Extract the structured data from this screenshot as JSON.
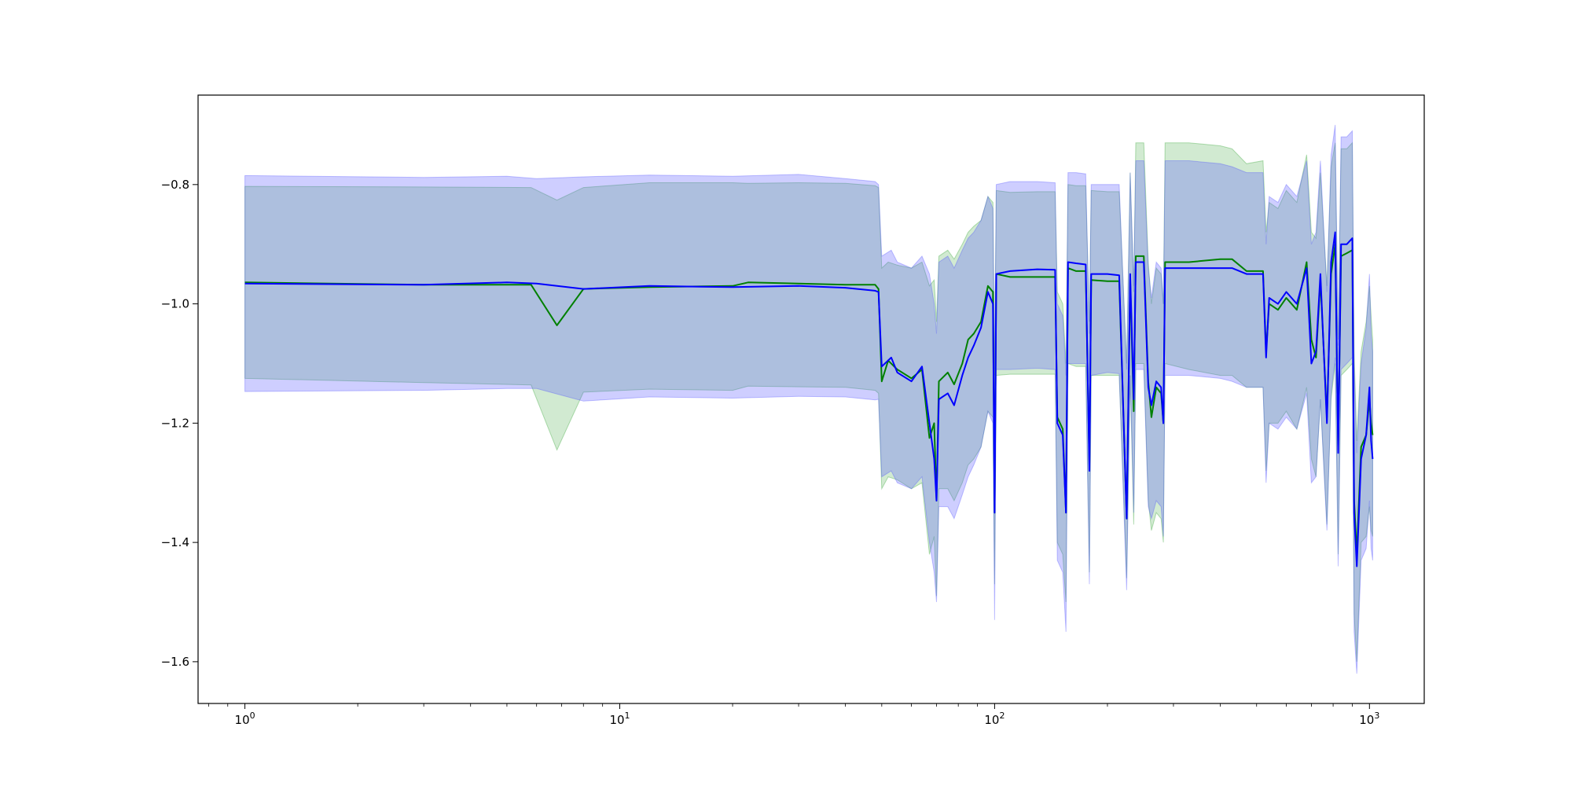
{
  "chart_data": {
    "type": "line",
    "title": "",
    "xlabel": "",
    "ylabel": "",
    "xscale": "log",
    "xlim": [
      0.75,
      1400
    ],
    "ylim": [
      -1.67,
      -0.65
    ],
    "grid": false,
    "legend": "none",
    "x_ticks": [
      {
        "value": 1,
        "base": "10",
        "exp": "0"
      },
      {
        "value": 10,
        "base": "10",
        "exp": "1"
      },
      {
        "value": 100,
        "base": "10",
        "exp": "2"
      },
      {
        "value": 1000,
        "base": "10",
        "exp": "3"
      }
    ],
    "y_ticks": [
      {
        "value": -0.8,
        "label": "−0.8"
      },
      {
        "value": -1.0,
        "label": "−1.0"
      },
      {
        "value": -1.2,
        "label": "−1.2"
      },
      {
        "value": -1.4,
        "label": "−1.4"
      },
      {
        "value": -1.6,
        "label": "−1.6"
      }
    ],
    "series": [
      {
        "color": "#008000",
        "band_color": "#2ca02c",
        "band_opacity": 0.22,
        "points": [
          [
            1,
            -0.964,
            -0.803,
            -1.125
          ],
          [
            3,
            -0.968,
            -0.804,
            -1.132
          ],
          [
            5.8,
            -0.968,
            -0.805,
            -1.136
          ],
          [
            6.8,
            -1.036,
            -0.826,
            -1.245
          ],
          [
            8,
            -0.975,
            -0.805,
            -1.148
          ],
          [
            12,
            -0.972,
            -0.797,
            -1.143
          ],
          [
            20,
            -0.97,
            -0.797,
            -1.145
          ],
          [
            22,
            -0.964,
            -0.798,
            -1.138
          ],
          [
            30,
            -0.966,
            -0.797,
            -1.139
          ],
          [
            40,
            -0.968,
            -0.798,
            -1.14
          ],
          [
            48,
            -0.968,
            -0.802,
            -1.145
          ],
          [
            49,
            -0.975,
            -0.805,
            -1.15
          ],
          [
            50,
            -1.13,
            -0.94,
            -1.31
          ],
          [
            52,
            -1.095,
            -0.93,
            -1.29
          ],
          [
            55,
            -1.11,
            -0.935,
            -1.295
          ],
          [
            60,
            -1.125,
            -0.94,
            -1.31
          ],
          [
            64,
            -1.11,
            -0.93,
            -1.3
          ],
          [
            67,
            -1.225,
            -0.97,
            -1.42
          ],
          [
            69,
            -1.2,
            -0.96,
            -1.39
          ],
          [
            70,
            -1.33,
            -1.03,
            -1.49
          ],
          [
            71,
            -1.13,
            -0.92,
            -1.31
          ],
          [
            75,
            -1.115,
            -0.91,
            -1.31
          ],
          [
            78,
            -1.135,
            -0.925,
            -1.33
          ],
          [
            82,
            -1.1,
            -0.9,
            -1.3
          ],
          [
            85,
            -1.06,
            -0.88,
            -1.27
          ],
          [
            88,
            -1.05,
            -0.87,
            -1.26
          ],
          [
            92,
            -1.03,
            -0.86,
            -1.24
          ],
          [
            96,
            -0.97,
            -0.82,
            -1.18
          ],
          [
            99,
            -0.98,
            -0.83,
            -1.19
          ],
          [
            100,
            -1.35,
            -1.12,
            -1.47
          ],
          [
            101,
            -0.95,
            -0.81,
            -1.12
          ],
          [
            110,
            -0.955,
            -0.813,
            -1.118
          ],
          [
            130,
            -0.955,
            -0.812,
            -1.118
          ],
          [
            145,
            -0.955,
            -0.812,
            -1.118
          ],
          [
            147,
            -1.19,
            -0.98,
            -1.4
          ],
          [
            152,
            -1.21,
            -1.0,
            -1.42
          ],
          [
            155,
            -1.35,
            -1.1,
            -1.5
          ],
          [
            157,
            -0.94,
            -0.8,
            -1.1
          ],
          [
            165,
            -0.945,
            -0.802,
            -1.105
          ],
          [
            175,
            -0.945,
            -0.802,
            -1.105
          ],
          [
            179,
            -1.27,
            -1.03,
            -1.45
          ],
          [
            181,
            -0.96,
            -0.81,
            -1.12
          ],
          [
            200,
            -0.962,
            -0.812,
            -1.12
          ],
          [
            215,
            -0.962,
            -0.812,
            -1.12
          ],
          [
            225,
            -1.36,
            -1.1,
            -1.46
          ],
          [
            230,
            -0.96,
            -0.78,
            -1.12
          ],
          [
            235,
            -1.18,
            -0.98,
            -1.37
          ],
          [
            238,
            -0.92,
            -0.73,
            -1.1
          ],
          [
            250,
            -0.92,
            -0.73,
            -1.1
          ],
          [
            257,
            -1.13,
            -0.93,
            -1.33
          ],
          [
            262,
            -1.19,
            -1.0,
            -1.38
          ],
          [
            270,
            -1.14,
            -0.94,
            -1.35
          ],
          [
            278,
            -1.15,
            -0.95,
            -1.36
          ],
          [
            282,
            -1.2,
            -1.0,
            -1.4
          ],
          [
            285,
            -0.93,
            -0.73,
            -1.1
          ],
          [
            330,
            -0.93,
            -0.73,
            -1.11
          ],
          [
            400,
            -0.925,
            -0.735,
            -1.12
          ],
          [
            430,
            -0.925,
            -0.74,
            -1.12
          ],
          [
            470,
            -0.945,
            -0.765,
            -1.14
          ],
          [
            520,
            -0.945,
            -0.76,
            -1.14
          ],
          [
            530,
            -1.08,
            -0.88,
            -1.28
          ],
          [
            540,
            -1.0,
            -0.83,
            -1.2
          ],
          [
            570,
            -1.01,
            -0.84,
            -1.2
          ],
          [
            600,
            -0.99,
            -0.81,
            -1.18
          ],
          [
            640,
            -1.01,
            -0.83,
            -1.21
          ],
          [
            680,
            -0.93,
            -0.75,
            -1.14
          ],
          [
            700,
            -1.06,
            -0.88,
            -1.26
          ],
          [
            720,
            -1.09,
            -0.89,
            -1.29
          ],
          [
            740,
            -0.96,
            -0.78,
            -1.16
          ],
          [
            770,
            -1.19,
            -0.97,
            -1.37
          ],
          [
            790,
            -0.95,
            -0.77,
            -1.16
          ],
          [
            810,
            -0.9,
            -0.73,
            -1.1
          ],
          [
            825,
            -1.24,
            -1.06,
            -1.42
          ],
          [
            840,
            -0.92,
            -0.74,
            -1.12
          ],
          [
            870,
            -0.915,
            -0.74,
            -1.11
          ],
          [
            900,
            -0.91,
            -0.73,
            -1.1
          ],
          [
            910,
            -1.33,
            -1.08,
            -1.52
          ],
          [
            925,
            -1.42,
            -1.23,
            -1.6
          ],
          [
            950,
            -1.24,
            -1.08,
            -1.4
          ],
          [
            980,
            -1.22,
            -1.03,
            -1.39
          ],
          [
            1000,
            -1.16,
            -0.97,
            -1.34
          ],
          [
            1010,
            -1.2,
            -1.02,
            -1.38
          ],
          [
            1020,
            -1.22,
            -1.06,
            -1.39
          ]
        ]
      },
      {
        "color": "#0000ff",
        "band_color": "#5050ff",
        "band_opacity": 0.28,
        "points": [
          [
            1,
            -0.966,
            -0.785,
            -1.147
          ],
          [
            3,
            -0.968,
            -0.788,
            -1.145
          ],
          [
            5,
            -0.964,
            -0.786,
            -1.142
          ],
          [
            6,
            -0.966,
            -0.79,
            -1.142
          ],
          [
            8,
            -0.975,
            -0.787,
            -1.163
          ],
          [
            12,
            -0.97,
            -0.784,
            -1.156
          ],
          [
            20,
            -0.972,
            -0.786,
            -1.158
          ],
          [
            30,
            -0.97,
            -0.783,
            -1.155
          ],
          [
            40,
            -0.973,
            -0.79,
            -1.156
          ],
          [
            48,
            -0.978,
            -0.795,
            -1.161
          ],
          [
            49,
            -0.98,
            -0.8,
            -1.16
          ],
          [
            50,
            -1.105,
            -0.92,
            -1.29
          ],
          [
            53,
            -1.09,
            -0.91,
            -1.28
          ],
          [
            55,
            -1.115,
            -0.93,
            -1.3
          ],
          [
            60,
            -1.13,
            -0.94,
            -1.31
          ],
          [
            64,
            -1.105,
            -0.92,
            -1.29
          ],
          [
            67,
            -1.2,
            -0.95,
            -1.4
          ],
          [
            69,
            -1.26,
            -1.0,
            -1.45
          ],
          [
            70,
            -1.33,
            -1.05,
            -1.5
          ],
          [
            71,
            -1.16,
            -0.93,
            -1.34
          ],
          [
            75,
            -1.15,
            -0.92,
            -1.34
          ],
          [
            78,
            -1.17,
            -0.94,
            -1.36
          ],
          [
            82,
            -1.12,
            -0.91,
            -1.32
          ],
          [
            85,
            -1.09,
            -0.89,
            -1.29
          ],
          [
            88,
            -1.07,
            -0.88,
            -1.27
          ],
          [
            92,
            -1.04,
            -0.86,
            -1.24
          ],
          [
            96,
            -0.98,
            -0.82,
            -1.18
          ],
          [
            99,
            -1.0,
            -0.84,
            -1.2
          ],
          [
            100,
            -1.35,
            -1.11,
            -1.53
          ],
          [
            101,
            -0.95,
            -0.8,
            -1.11
          ],
          [
            110,
            -0.945,
            -0.795,
            -1.11
          ],
          [
            130,
            -0.942,
            -0.795,
            -1.108
          ],
          [
            145,
            -0.943,
            -0.797,
            -1.11
          ],
          [
            147,
            -1.2,
            -1.0,
            -1.43
          ],
          [
            152,
            -1.22,
            -1.02,
            -1.45
          ],
          [
            155,
            -1.35,
            -1.12,
            -1.55
          ],
          [
            157,
            -0.93,
            -0.78,
            -1.1
          ],
          [
            165,
            -0.932,
            -0.78,
            -1.1
          ],
          [
            175,
            -0.934,
            -0.782,
            -1.1
          ],
          [
            179,
            -1.28,
            -1.05,
            -1.47
          ],
          [
            181,
            -0.95,
            -0.8,
            -1.12
          ],
          [
            200,
            -0.95,
            -0.8,
            -1.115
          ],
          [
            215,
            -0.952,
            -0.8,
            -1.117
          ],
          [
            225,
            -1.36,
            -1.11,
            -1.48
          ],
          [
            230,
            -0.95,
            -0.78,
            -1.12
          ],
          [
            235,
            -1.16,
            -0.97,
            -1.35
          ],
          [
            238,
            -0.93,
            -0.76,
            -1.11
          ],
          [
            250,
            -0.93,
            -0.76,
            -1.11
          ],
          [
            257,
            -1.14,
            -0.94,
            -1.34
          ],
          [
            262,
            -1.17,
            -0.99,
            -1.36
          ],
          [
            270,
            -1.13,
            -0.93,
            -1.33
          ],
          [
            278,
            -1.14,
            -0.94,
            -1.34
          ],
          [
            282,
            -1.2,
            -1.0,
            -1.39
          ],
          [
            285,
            -0.94,
            -0.76,
            -1.12
          ],
          [
            330,
            -0.94,
            -0.76,
            -1.12
          ],
          [
            400,
            -0.94,
            -0.765,
            -1.125
          ],
          [
            430,
            -0.94,
            -0.77,
            -1.13
          ],
          [
            470,
            -0.95,
            -0.78,
            -1.14
          ],
          [
            520,
            -0.95,
            -0.78,
            -1.14
          ],
          [
            530,
            -1.09,
            -0.9,
            -1.3
          ],
          [
            540,
            -0.99,
            -0.82,
            -1.2
          ],
          [
            570,
            -1.0,
            -0.83,
            -1.21
          ],
          [
            600,
            -0.98,
            -0.8,
            -1.19
          ],
          [
            640,
            -1.0,
            -0.82,
            -1.21
          ],
          [
            680,
            -0.94,
            -0.76,
            -1.15
          ],
          [
            700,
            -1.1,
            -0.9,
            -1.3
          ],
          [
            720,
            -1.08,
            -0.88,
            -1.29
          ],
          [
            740,
            -0.95,
            -0.76,
            -1.16
          ],
          [
            770,
            -1.2,
            -0.98,
            -1.38
          ],
          [
            790,
            -0.93,
            -0.75,
            -1.15
          ],
          [
            810,
            -0.88,
            -0.7,
            -1.09
          ],
          [
            825,
            -1.25,
            -1.07,
            -1.44
          ],
          [
            840,
            -0.9,
            -0.72,
            -1.11
          ],
          [
            870,
            -0.9,
            -0.72,
            -1.1
          ],
          [
            900,
            -0.89,
            -0.71,
            -1.09
          ],
          [
            910,
            -1.35,
            -1.1,
            -1.55
          ],
          [
            925,
            -1.44,
            -1.25,
            -1.62
          ],
          [
            950,
            -1.26,
            -1.1,
            -1.43
          ],
          [
            980,
            -1.22,
            -1.04,
            -1.41
          ],
          [
            1000,
            -1.14,
            -0.95,
            -1.33
          ],
          [
            1010,
            -1.23,
            -1.05,
            -1.41
          ],
          [
            1020,
            -1.26,
            -1.08,
            -1.43
          ]
        ]
      }
    ]
  }
}
